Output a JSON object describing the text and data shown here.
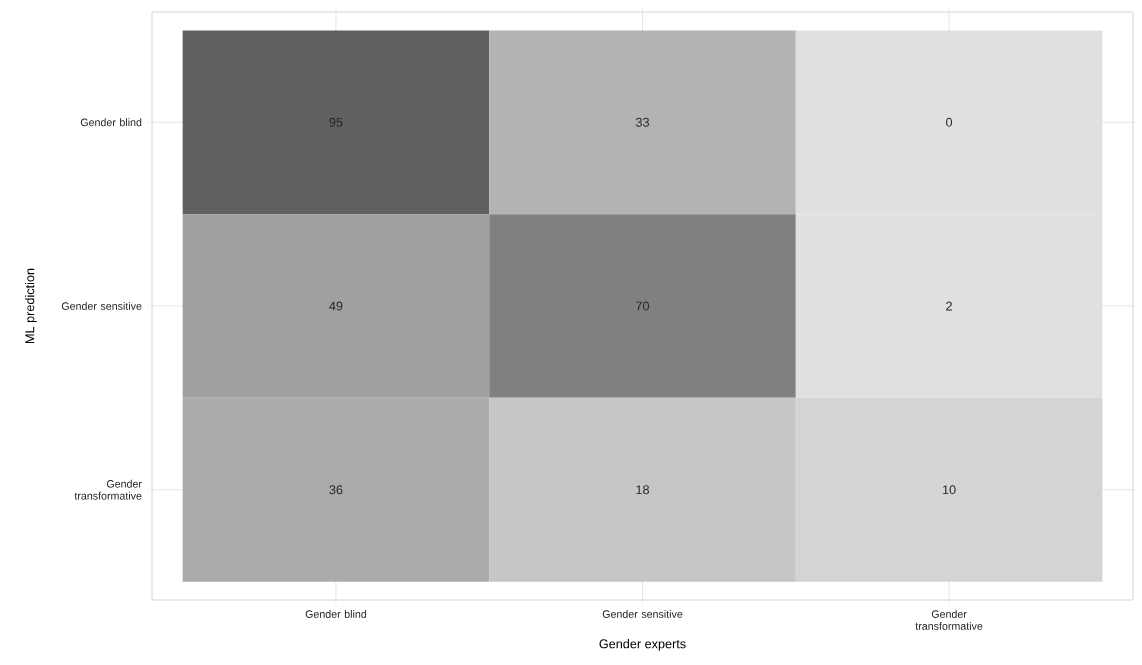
{
  "chart_data": {
    "type": "heatmap",
    "xlabel": "Gender experts",
    "ylabel": "ML prediction",
    "categories": [
      "Gender blind",
      "Gender sensitive",
      "Gender transformative"
    ],
    "y_categories": [
      "Gender blind",
      "Gender sensitive",
      "Gender transformative"
    ],
    "cells": [
      [
        95,
        33,
        0
      ],
      [
        49,
        70,
        2
      ],
      [
        36,
        18,
        10
      ]
    ],
    "colors": [
      [
        "#606060",
        "#b3b3b3",
        "#e0e0e0"
      ],
      [
        "#a0a0a0",
        "#808080",
        "#e0e0e0"
      ],
      [
        "#ababab",
        "#c6c6c6",
        "#d4d4d4"
      ]
    ],
    "data_labels": true,
    "grid": true
  }
}
